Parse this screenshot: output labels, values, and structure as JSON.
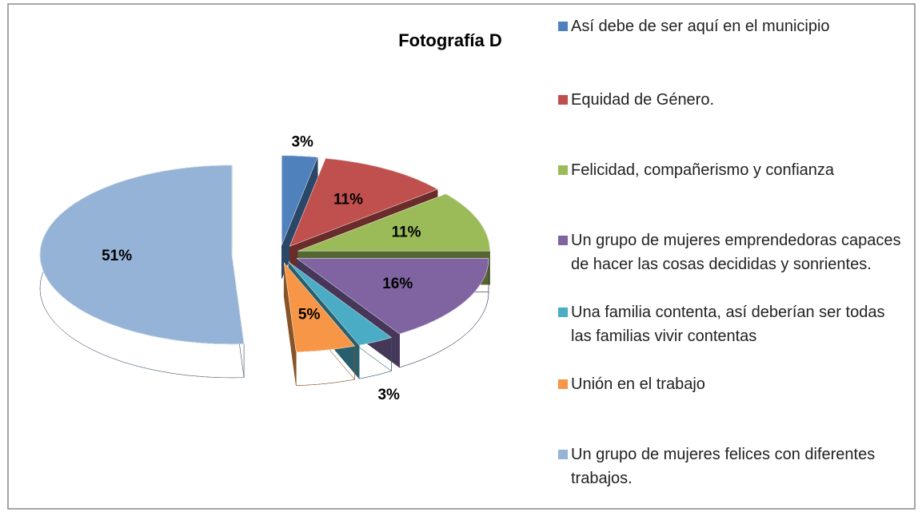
{
  "chart_data": {
    "type": "pie",
    "title": "Fotografía D",
    "categories": [
      "Así debe de ser aquí en el municipio",
      "Equidad de Género.",
      "Felicidad, compañerismo y confianza",
      "Un grupo de mujeres emprendedoras capaces de hacer las cosas decididas y sonrientes.",
      "Una familia contenta, así deberían ser todas las familias vivir contentas",
      "Unión en el trabajo",
      "Un grupo de mujeres felices con diferentes trabajos."
    ],
    "values": [
      3,
      11,
      11,
      16,
      3,
      5,
      51
    ],
    "value_labels": [
      "3%",
      "11%",
      "11%",
      "16%",
      "3%",
      "5%",
      "51%"
    ],
    "colors": [
      "#4f81bd",
      "#c0504d",
      "#9bbb59",
      "#8064a2",
      "#4bacc6",
      "#f79646",
      "#95b3d7"
    ],
    "legend": "right"
  }
}
